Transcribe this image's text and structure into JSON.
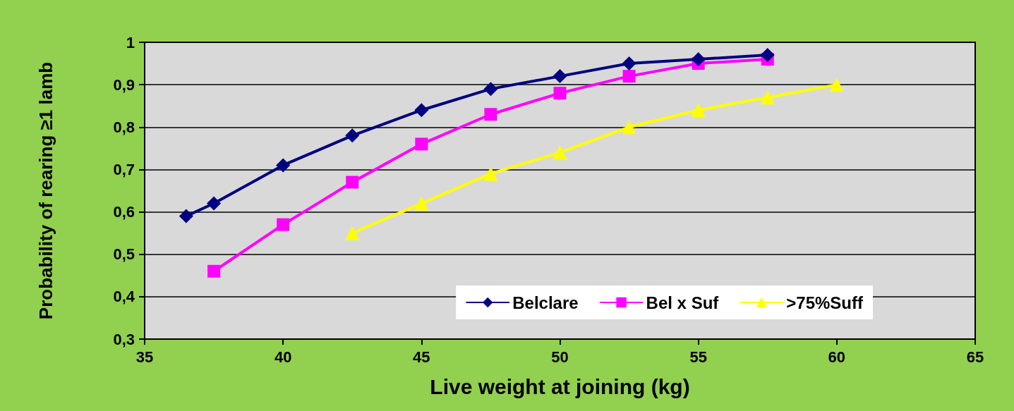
{
  "chart_data": {
    "type": "line",
    "xlabel": "Live weight at joining (kg)",
    "ylabel": "Probability of rearing ≥1 lamb",
    "xlim": [
      35,
      65
    ],
    "xticks": [
      35,
      40,
      45,
      50,
      55,
      60,
      65
    ],
    "ylim": [
      0.3,
      1
    ],
    "yticks": [
      {
        "value": 0.3,
        "label": "0,3"
      },
      {
        "value": 0.4,
        "label": "0,4"
      },
      {
        "value": 0.5,
        "label": "0,5"
      },
      {
        "value": 0.6,
        "label": "0,6"
      },
      {
        "value": 0.7,
        "label": "0,7"
      },
      {
        "value": 0.8,
        "label": "0,8"
      },
      {
        "value": 0.9,
        "label": "0,9"
      },
      1
    ],
    "grid": "y",
    "legend": "bottom right",
    "series": [
      {
        "name": "Belclare",
        "color": "#000080",
        "marker": "diamond",
        "x": [
          36.5,
          37.5,
          40,
          42.5,
          45,
          47.5,
          50,
          52.5,
          55,
          57.5
        ],
        "values": [
          0.59,
          0.62,
          0.71,
          0.78,
          0.84,
          0.89,
          0.92,
          0.95,
          0.96,
          0.97
        ]
      },
      {
        "name": "Bel x Suf",
        "color": "#ff00ff",
        "marker": "square",
        "x": [
          37.5,
          40,
          42.5,
          45,
          47.5,
          50,
          52.5,
          55,
          57.5
        ],
        "values": [
          0.46,
          0.57,
          0.67,
          0.76,
          0.83,
          0.88,
          0.92,
          0.95,
          0.96
        ]
      },
      {
        "name": ">75%Suff",
        "color": "#ffff00",
        "marker": "triangle",
        "x": [
          42.5,
          45,
          47.5,
          50,
          52.5,
          55,
          57.5,
          60
        ],
        "values": [
          0.55,
          0.62,
          0.69,
          0.74,
          0.8,
          0.84,
          0.87,
          0.9
        ]
      }
    ]
  }
}
